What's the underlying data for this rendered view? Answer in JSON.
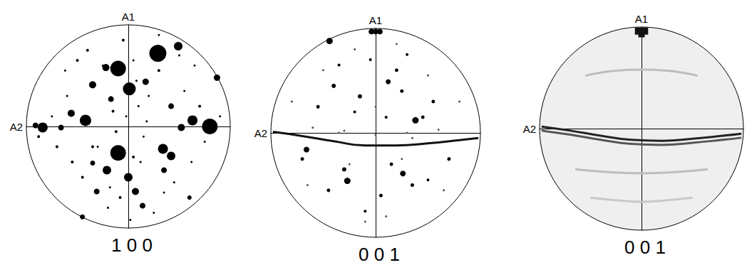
{
  "chart_data": [
    {
      "type": "scatter",
      "title": "1 0 0",
      "xlabel": "A2",
      "ylabel": "A1",
      "xlim": [
        -1,
        1
      ],
      "ylim": [
        -1,
        1
      ],
      "grid": false,
      "tick_labels": false,
      "series": [
        {
          "type": "scatter",
          "marker": "circle",
          "color": "#000000",
          "x": [
            0.29,
            0.49,
            -0.1,
            0.01,
            -0.22,
            0.17,
            -0.35,
            -0.17,
            -0.42,
            -0.56,
            -0.84,
            -0.91,
            0.8,
            0.63,
            0.52,
            0.87,
            -0.1,
            0.34,
            0.42,
            -0.21,
            0.0,
            0.07,
            0.14,
            -0.31,
            -0.45,
            0.35,
            0.42,
            -0.35,
            -0.66,
            0.6
          ],
          "y": [
            0.72,
            0.79,
            0.57,
            0.37,
            0.58,
            0.44,
            0.41,
            0.27,
            0.06,
            0.13,
            -0.01,
            0.01,
            0.0,
            0.06,
            -0.01,
            0.48,
            -0.26,
            -0.22,
            -0.29,
            -0.43,
            -0.5,
            -0.64,
            -0.78,
            -0.64,
            -0.89,
            -0.43,
            0.2,
            -0.36,
            -0.01,
            -0.7
          ],
          "size": [
            24,
            12,
            22,
            18,
            10,
            9,
            10,
            8,
            16,
            10,
            14,
            8,
            22,
            14,
            10,
            9,
            22,
            14,
            12,
            12,
            12,
            10,
            8,
            8,
            7,
            8,
            8,
            7,
            8,
            6
          ]
        },
        {
          "type": "scatter",
          "marker": "circle",
          "color": "#000000",
          "x": [
            -0.05,
            0.05,
            0.1,
            -0.15,
            0.2,
            -0.25,
            0.3,
            -0.3,
            0.12,
            -0.08,
            0.55,
            0.7,
            0.75,
            -0.6,
            -0.7,
            -0.75,
            0.45,
            -0.45,
            0.25,
            -0.2,
            0.05,
            -0.02,
            0.15,
            -0.12,
            0.62,
            -0.62,
            0.3,
            -0.4,
            0.9,
            -0.88,
            0.02,
            0.08,
            -0.5,
            0.5,
            0.35,
            -0.35,
            0.18,
            -0.18,
            0.65,
            -0.55
          ],
          "y": [
            0.85,
            0.65,
            0.2,
            0.15,
            0.3,
            0.6,
            0.55,
            -0.2,
            -0.35,
            -0.7,
            0.35,
            0.2,
            -0.15,
            0.3,
            -0.2,
            0.1,
            -0.55,
            -0.5,
            -0.85,
            -0.8,
            -0.3,
            0.1,
            -0.1,
            -0.05,
            -0.35,
            0.55,
            0.9,
            0.75,
            0.1,
            -0.1,
            -0.92,
            0.45,
            0.65,
            0.7,
            -0.65,
            -0.2,
            0.05,
            -0.6,
            0.6,
            -0.35
          ],
          "size": [
            4,
            3,
            3,
            4,
            3,
            3,
            4,
            3,
            3,
            4,
            3,
            4,
            3,
            3,
            4,
            3,
            3,
            4,
            3,
            3,
            4,
            3,
            3,
            4,
            3,
            3,
            3,
            4,
            3,
            4,
            3,
            3,
            4,
            3,
            3,
            4,
            3,
            3,
            3,
            4
          ]
        }
      ]
    },
    {
      "type": "scatter",
      "title": "0 0 1",
      "xlabel": "A2",
      "ylabel": "A1",
      "xlim": [
        -1,
        1
      ],
      "ylim": [
        -1,
        1
      ],
      "grid": false,
      "tick_labels": false,
      "series": [
        {
          "type": "scatter",
          "marker": "circle",
          "color": "#000000",
          "x": [
            0.0,
            -0.04,
            0.04,
            -0.44,
            -0.66,
            0.38,
            -0.27,
            0.26,
            0.12,
            -0.15,
            -0.4,
            0.2,
            -0.55,
            0.55,
            -0.3,
            0.35,
            0.05,
            -0.1,
            0.45,
            -0.7,
            0.7,
            -0.2,
            0.25,
            0.1,
            -0.45,
            0.5,
            -0.05,
            0.3,
            -0.35,
            0.15
          ],
          "y": [
            0.97,
            0.97,
            0.97,
            0.88,
            -0.16,
            0.12,
            -0.46,
            -0.39,
            0.49,
            0.35,
            0.45,
            0.6,
            0.25,
            0.3,
            -0.35,
            -0.5,
            -0.6,
            -0.75,
            0.15,
            -0.25,
            -0.25,
            0.2,
            0.4,
            0.15,
            -0.55,
            -0.45,
            0.7,
            0.75,
            0.65,
            -0.3
          ],
          "size": [
            8,
            8,
            8,
            9,
            8,
            9,
            9,
            8,
            7,
            6,
            6,
            5,
            5,
            5,
            6,
            5,
            5,
            4,
            5,
            5,
            5,
            4,
            5,
            4,
            5,
            4,
            4,
            4,
            4,
            5
          ]
        },
        {
          "type": "scatter",
          "marker": "circle",
          "color": "#555555",
          "x": [
            -0.6,
            -0.3,
            0.0,
            0.3,
            0.6,
            -0.8,
            0.8,
            -0.5,
            0.5,
            -0.2,
            0.2,
            -0.1,
            0.1,
            -0.65,
            0.65,
            -0.35,
            0.35,
            0.0,
            -0.25,
            0.25
          ],
          "y": [
            0.05,
            0.02,
            -0.02,
            0.0,
            0.03,
            0.3,
            0.3,
            0.6,
            0.55,
            0.8,
            0.85,
            -0.85,
            -0.8,
            -0.5,
            -0.55,
            0.0,
            -0.05,
            0.25,
            -0.3,
            -0.25
          ],
          "size": [
            3,
            3,
            3,
            3,
            3,
            3,
            3,
            3,
            3,
            3,
            3,
            3,
            3,
            3,
            3,
            3,
            3,
            3,
            3,
            3
          ]
        },
        {
          "type": "line",
          "line_style": "solid",
          "color": "#111111",
          "x": [
            -0.98,
            -0.7,
            -0.4,
            -0.1,
            0.2,
            0.5,
            0.8,
            0.98
          ],
          "y": [
            0.01,
            -0.03,
            -0.08,
            -0.12,
            -0.12,
            -0.1,
            -0.07,
            -0.05
          ]
        }
      ]
    },
    {
      "type": "scatter",
      "title": "0 0 1",
      "xlabel": "A2",
      "ylabel": "A1",
      "xlim": [
        -1,
        1
      ],
      "ylim": [
        -1,
        1
      ],
      "grid": false,
      "tick_labels": false,
      "series": [
        {
          "type": "line",
          "line_style": "solid",
          "color": "#bdbdbd",
          "x": [
            -0.55,
            -0.25,
            0.0,
            0.25,
            0.55
          ],
          "y": [
            0.52,
            0.57,
            0.58,
            0.57,
            0.52
          ]
        },
        {
          "type": "line",
          "line_style": "solid",
          "color": "#bdbdbd",
          "x": [
            -0.65,
            -0.3,
            0.0,
            0.3,
            0.65
          ],
          "y": [
            -0.4,
            -0.43,
            -0.44,
            -0.43,
            -0.4
          ]
        },
        {
          "type": "line",
          "line_style": "solid",
          "color": "#c8c8c8",
          "x": [
            -0.5,
            -0.2,
            0.0,
            0.2,
            0.5
          ],
          "y": [
            -0.68,
            -0.71,
            -0.72,
            -0.71,
            -0.68
          ]
        },
        {
          "type": "line",
          "line_style": "solid",
          "color": "#222222",
          "x": [
            -0.98,
            -0.7,
            -0.4,
            -0.1,
            0.2,
            0.5,
            0.8,
            0.98
          ],
          "y": [
            0.02,
            -0.02,
            -0.07,
            -0.11,
            -0.12,
            -0.1,
            -0.07,
            -0.05
          ]
        },
        {
          "type": "line",
          "line_style": "solid",
          "color": "#555555",
          "x": [
            -0.98,
            -0.7,
            -0.4,
            -0.1,
            0.2,
            0.5,
            0.8,
            0.98
          ],
          "y": [
            -0.02,
            -0.06,
            -0.11,
            -0.15,
            -0.16,
            -0.14,
            -0.11,
            -0.09
          ]
        },
        {
          "type": "scatter",
          "marker": "rect",
          "color": "#111111",
          "x": [
            -0.03,
            0.03,
            0.0
          ],
          "y": [
            0.96,
            0.96,
            0.93
          ],
          "size": [
            10,
            10,
            9
          ]
        }
      ]
    }
  ]
}
